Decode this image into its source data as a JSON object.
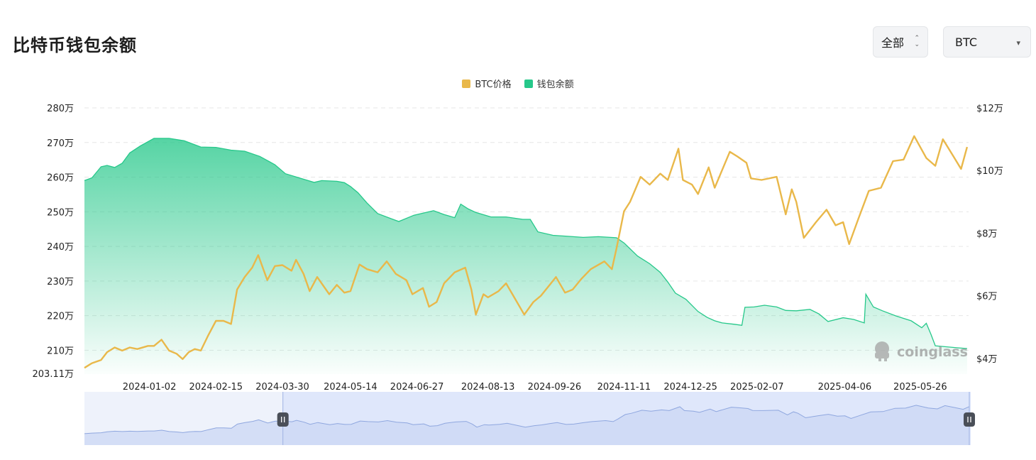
{
  "page": {
    "title": "比特币钱包余额",
    "range_select": {
      "value": "全部"
    },
    "coin_select": {
      "value": "BTC"
    },
    "watermark": "coinglass"
  },
  "colors": {
    "price": "#e9b84a",
    "balance": "#26c88a",
    "navigator": "#dfe7fb",
    "navigator_line": "#8fa7df"
  },
  "icons": {
    "range_caret": "chevron-up-down-icon",
    "coin_caret": "caret-down-icon",
    "handle": "pause-handle-icon",
    "logo": "coinglass-logo-icon"
  },
  "chart_data": {
    "type": "line",
    "legend_position": "top-center",
    "grid": true,
    "series": [
      {
        "name": "BTC价格",
        "axis": "right",
        "style": "line",
        "color": "#e9b84a",
        "points": [
          [
            "2023-11-20",
            37000
          ],
          [
            "2023-11-25",
            38500
          ],
          [
            "2023-12-01",
            39500
          ],
          [
            "2023-12-05",
            42000
          ],
          [
            "2023-12-10",
            43500
          ],
          [
            "2023-12-15",
            42500
          ],
          [
            "2023-12-20",
            43500
          ],
          [
            "2023-12-25",
            43000
          ],
          [
            "2024-01-01",
            44000
          ],
          [
            "2024-01-05",
            44000
          ],
          [
            "2024-01-10",
            46000
          ],
          [
            "2024-01-15",
            42500
          ],
          [
            "2024-01-20",
            41500
          ],
          [
            "2024-01-24",
            39800
          ],
          [
            "2024-01-28",
            42000
          ],
          [
            "2024-02-01",
            43000
          ],
          [
            "2024-02-05",
            42500
          ],
          [
            "2024-02-10",
            47500
          ],
          [
            "2024-02-15",
            52000
          ],
          [
            "2024-02-20",
            52000
          ],
          [
            "2024-02-25",
            51000
          ],
          [
            "2024-02-29",
            62000
          ],
          [
            "2024-03-05",
            66000
          ],
          [
            "2024-03-10",
            69000
          ],
          [
            "2024-03-14",
            73000
          ],
          [
            "2024-03-20",
            65000
          ],
          [
            "2024-03-25",
            69500
          ],
          [
            "2024-03-30",
            69800
          ],
          [
            "2024-04-05",
            68000
          ],
          [
            "2024-04-08",
            71500
          ],
          [
            "2024-04-13",
            67000
          ],
          [
            "2024-04-17",
            61500
          ],
          [
            "2024-04-22",
            66000
          ],
          [
            "2024-04-30",
            60500
          ],
          [
            "2024-05-05",
            63500
          ],
          [
            "2024-05-10",
            61000
          ],
          [
            "2024-05-14",
            61500
          ],
          [
            "2024-05-20",
            70000
          ],
          [
            "2024-05-25",
            68500
          ],
          [
            "2024-06-01",
            67500
          ],
          [
            "2024-06-07",
            71000
          ],
          [
            "2024-06-13",
            67000
          ],
          [
            "2024-06-20",
            65000
          ],
          [
            "2024-06-24",
            60500
          ],
          [
            "2024-07-01",
            62500
          ],
          [
            "2024-07-05",
            56500
          ],
          [
            "2024-07-10",
            58000
          ],
          [
            "2024-07-15",
            64000
          ],
          [
            "2024-07-22",
            67500
          ],
          [
            "2024-07-29",
            69000
          ],
          [
            "2024-08-02",
            62000
          ],
          [
            "2024-08-05",
            54000
          ],
          [
            "2024-08-10",
            60500
          ],
          [
            "2024-08-13",
            59500
          ],
          [
            "2024-08-20",
            61500
          ],
          [
            "2024-08-25",
            64000
          ],
          [
            "2024-08-31",
            59000
          ],
          [
            "2024-09-06",
            54000
          ],
          [
            "2024-09-12",
            58000
          ],
          [
            "2024-09-17",
            60000
          ],
          [
            "2024-09-22",
            63000
          ],
          [
            "2024-09-27",
            66000
          ],
          [
            "2024-10-03",
            61000
          ],
          [
            "2024-10-08",
            62000
          ],
          [
            "2024-10-14",
            65500
          ],
          [
            "2024-10-20",
            68500
          ],
          [
            "2024-10-29",
            71000
          ],
          [
            "2024-11-03",
            68500
          ],
          [
            "2024-11-06",
            75000
          ],
          [
            "2024-11-11",
            87000
          ],
          [
            "2024-11-15",
            90000
          ],
          [
            "2024-11-22",
            98000
          ],
          [
            "2024-11-28",
            95500
          ],
          [
            "2024-12-05",
            99000
          ],
          [
            "2024-12-10",
            97000
          ],
          [
            "2024-12-17",
            107000
          ],
          [
            "2024-12-20",
            97000
          ],
          [
            "2024-12-26",
            95500
          ],
          [
            "2024-12-30",
            92500
          ],
          [
            "2025-01-06",
            101000
          ],
          [
            "2025-01-10",
            94500
          ],
          [
            "2025-01-20",
            106000
          ],
          [
            "2025-01-25",
            104500
          ],
          [
            "2025-01-31",
            102500
          ],
          [
            "2025-02-03",
            97500
          ],
          [
            "2025-02-10",
            97000
          ],
          [
            "2025-02-20",
            98000
          ],
          [
            "2025-02-26",
            86000
          ],
          [
            "2025-03-02",
            94000
          ],
          [
            "2025-03-05",
            90000
          ],
          [
            "2025-03-10",
            78500
          ],
          [
            "2025-03-18",
            83500
          ],
          [
            "2025-03-25",
            87500
          ],
          [
            "2025-03-31",
            82500
          ],
          [
            "2025-04-05",
            83500
          ],
          [
            "2025-04-09",
            76500
          ],
          [
            "2025-04-15",
            84500
          ],
          [
            "2025-04-22",
            93500
          ],
          [
            "2025-04-30",
            94500
          ],
          [
            "2025-05-08",
            103000
          ],
          [
            "2025-05-15",
            103500
          ],
          [
            "2025-05-22",
            111000
          ],
          [
            "2025-05-30",
            104000
          ],
          [
            "2025-06-05",
            101500
          ],
          [
            "2025-06-10",
            110000
          ],
          [
            "2025-06-17",
            104500
          ],
          [
            "2025-06-22",
            100500
          ],
          [
            "2025-06-26",
            107500
          ]
        ]
      },
      {
        "name": "钱包余额",
        "axis": "left",
        "style": "area",
        "color": "#26c88a",
        "points": [
          [
            "2023-11-20",
            2590000
          ],
          [
            "2023-11-25",
            2598000
          ],
          [
            "2023-12-01",
            2630000
          ],
          [
            "2023-12-05",
            2634000
          ],
          [
            "2023-12-10",
            2628000
          ],
          [
            "2023-12-15",
            2640000
          ],
          [
            "2023-12-20",
            2670000
          ],
          [
            "2023-12-27",
            2690000
          ],
          [
            "2024-01-05",
            2712000
          ],
          [
            "2024-01-15",
            2712000
          ],
          [
            "2024-01-25",
            2705000
          ],
          [
            "2024-02-05",
            2687000
          ],
          [
            "2024-02-15",
            2686000
          ],
          [
            "2024-02-25",
            2678000
          ],
          [
            "2024-03-05",
            2675000
          ],
          [
            "2024-03-15",
            2660000
          ],
          [
            "2024-03-25",
            2636000
          ],
          [
            "2024-04-01",
            2610000
          ],
          [
            "2024-04-10",
            2598000
          ],
          [
            "2024-04-20",
            2585000
          ],
          [
            "2024-04-25",
            2590000
          ],
          [
            "2024-05-05",
            2588000
          ],
          [
            "2024-05-10",
            2584000
          ],
          [
            "2024-05-14",
            2573000
          ],
          [
            "2024-05-19",
            2555000
          ],
          [
            "2024-05-25",
            2525000
          ],
          [
            "2024-06-01",
            2495000
          ],
          [
            "2024-06-10",
            2480000
          ],
          [
            "2024-06-15",
            2472000
          ],
          [
            "2024-06-25",
            2490000
          ],
          [
            "2024-07-08",
            2503000
          ],
          [
            "2024-07-15",
            2492000
          ],
          [
            "2024-07-22",
            2483000
          ],
          [
            "2024-07-26",
            2522000
          ],
          [
            "2024-07-31",
            2508000
          ],
          [
            "2024-08-05",
            2498000
          ],
          [
            "2024-08-15",
            2485000
          ],
          [
            "2024-08-25",
            2485000
          ],
          [
            "2024-09-05",
            2478000
          ],
          [
            "2024-09-10",
            2478000
          ],
          [
            "2024-09-15",
            2442000
          ],
          [
            "2024-09-25",
            2432000
          ],
          [
            "2024-10-05",
            2429000
          ],
          [
            "2024-10-15",
            2426000
          ],
          [
            "2024-10-25",
            2428000
          ],
          [
            "2024-11-06",
            2425000
          ],
          [
            "2024-11-11",
            2410000
          ],
          [
            "2024-11-20",
            2372000
          ],
          [
            "2024-11-28",
            2350000
          ],
          [
            "2024-12-05",
            2325000
          ],
          [
            "2024-12-10",
            2297000
          ],
          [
            "2024-12-15",
            2265000
          ],
          [
            "2024-12-22",
            2247000
          ],
          [
            "2024-12-30",
            2212000
          ],
          [
            "2025-01-05",
            2195000
          ],
          [
            "2025-01-10",
            2185000
          ],
          [
            "2025-01-15",
            2179000
          ],
          [
            "2025-01-23",
            2175000
          ],
          [
            "2025-01-28",
            2172000
          ],
          [
            "2025-01-30",
            2224000
          ],
          [
            "2025-02-05",
            2225000
          ],
          [
            "2025-02-12",
            2230000
          ],
          [
            "2025-02-20",
            2225000
          ],
          [
            "2025-02-26",
            2215000
          ],
          [
            "2025-03-05",
            2214000
          ],
          [
            "2025-03-14",
            2218000
          ],
          [
            "2025-03-20",
            2205000
          ],
          [
            "2025-03-26",
            2183000
          ],
          [
            "2025-04-05",
            2194000
          ],
          [
            "2025-04-12",
            2189000
          ],
          [
            "2025-04-19",
            2179000
          ],
          [
            "2025-04-20",
            2262000
          ],
          [
            "2025-04-25",
            2225000
          ],
          [
            "2025-05-01",
            2214000
          ],
          [
            "2025-05-10",
            2199000
          ],
          [
            "2025-05-20",
            2185000
          ],
          [
            "2025-05-27",
            2165000
          ],
          [
            "2025-05-30",
            2178000
          ],
          [
            "2025-06-02",
            2147000
          ],
          [
            "2025-06-05",
            2113000
          ],
          [
            "2025-06-12",
            2110000
          ],
          [
            "2025-06-20",
            2107000
          ],
          [
            "2025-06-26",
            2105000
          ]
        ]
      }
    ],
    "x_ticks": [
      "2024-01-02",
      "2024-02-15",
      "2024-03-30",
      "2024-05-14",
      "2024-06-27",
      "2024-08-13",
      "2024-09-26",
      "2024-11-11",
      "2024-12-25",
      "2025-02-07",
      "2025-04-06",
      "2025-05-26"
    ],
    "x_range": [
      "2023-11-20",
      "2025-06-27"
    ],
    "y_left": {
      "ticks": [
        "280万",
        "270万",
        "260万",
        "250万",
        "240万",
        "230万",
        "220万",
        "210万"
      ],
      "tick_values": [
        2800000,
        2700000,
        2600000,
        2500000,
        2400000,
        2300000,
        2200000,
        2100000
      ],
      "min_label": "203.11万",
      "range": [
        2031100,
        2800000
      ]
    },
    "y_right": {
      "ticks": [
        "$12万",
        "$10万",
        "$8万",
        "$6万",
        "$4万"
      ],
      "tick_values": [
        120000,
        100000,
        80000,
        60000,
        40000
      ],
      "range": [
        35000,
        120000
      ]
    },
    "navigator": {
      "selection": [
        "2024-03-30",
        "2025-06-27"
      ]
    }
  }
}
